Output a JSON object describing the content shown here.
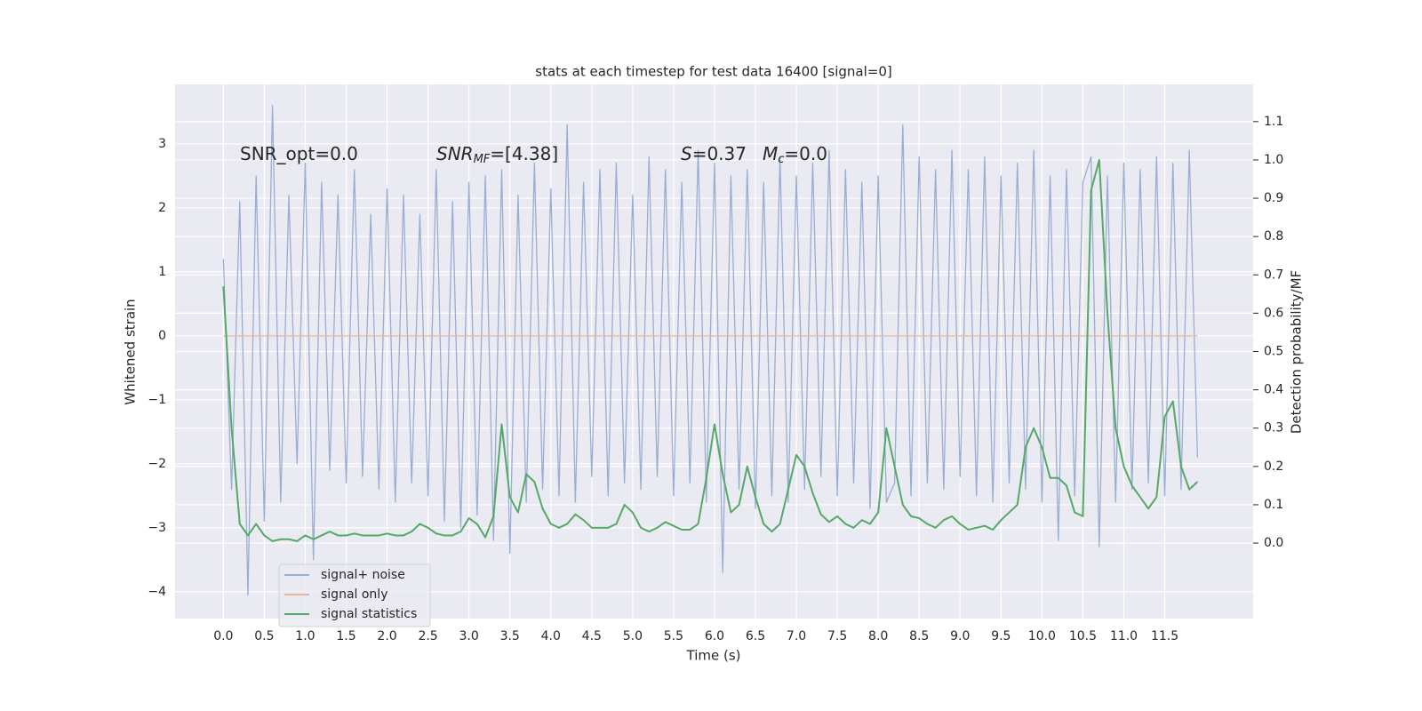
{
  "chart_data": {
    "type": "line",
    "title": "stats at each timestep for test data 16400 [signal=0]",
    "x_label": "Time (s)",
    "y_label": "Whitened strain",
    "y2_label": "Detection probability/MF",
    "annotations": [
      {
        "text": "SNR_opt=0.0"
      },
      {
        "symbol": "SNR",
        "subscript": "MF",
        "text": "=[4.38]"
      },
      {
        "symbol": "S",
        "text": "=0.37"
      },
      {
        "symbol": "M",
        "subscript": "c",
        "text": "=0.0"
      }
    ],
    "xlim": [
      -0.59,
      12.58
    ],
    "ylim": [
      -4.42,
      3.93
    ],
    "y2lim": [
      -0.197,
      1.197
    ],
    "xticks": [
      {
        "value": 0,
        "label": "0.0"
      },
      {
        "value": 0.5,
        "label": "0.5"
      },
      {
        "value": 1,
        "label": "1.0"
      },
      {
        "value": 1.5,
        "label": "1.5"
      },
      {
        "value": 2,
        "label": "2.0"
      },
      {
        "value": 2.5,
        "label": "2.5"
      },
      {
        "value": 3,
        "label": "3.0"
      },
      {
        "value": 3.5,
        "label": "3.5"
      },
      {
        "value": 4,
        "label": "4.0"
      },
      {
        "value": 4.5,
        "label": "4.5"
      },
      {
        "value": 5,
        "label": "5.0"
      },
      {
        "value": 5.5,
        "label": "5.5"
      },
      {
        "value": 6,
        "label": "6.0"
      },
      {
        "value": 6.5,
        "label": "6.5"
      },
      {
        "value": 7,
        "label": "7.0"
      },
      {
        "value": 7.5,
        "label": "7.5"
      },
      {
        "value": 8,
        "label": "8.0"
      },
      {
        "value": 8.5,
        "label": "8.5"
      },
      {
        "value": 9,
        "label": "9.0"
      },
      {
        "value": 9.5,
        "label": "9.5"
      },
      {
        "value": 10,
        "label": "10.0"
      },
      {
        "value": 10.5,
        "label": "10.5"
      },
      {
        "value": 11,
        "label": "11.0"
      },
      {
        "value": 11.5,
        "label": "11.5"
      }
    ],
    "yticks": [
      {
        "value": -4,
        "label": "−4"
      },
      {
        "value": -3,
        "label": "−3"
      },
      {
        "value": -2,
        "label": "−2"
      },
      {
        "value": -1,
        "label": "−1"
      },
      0,
      1,
      2,
      3
    ],
    "y2ticks": [
      {
        "value": 0,
        "label": "0.0"
      },
      {
        "value": 0.1,
        "label": "0.1"
      },
      {
        "value": 0.2,
        "label": "0.2"
      },
      {
        "value": 0.3,
        "label": "0.3"
      },
      {
        "value": 0.4,
        "label": "0.4"
      },
      {
        "value": 0.5,
        "label": "0.5"
      },
      {
        "value": 0.6,
        "label": "0.6"
      },
      {
        "value": 0.7,
        "label": "0.7"
      },
      {
        "value": 0.8,
        "label": "0.8"
      },
      {
        "value": 0.9,
        "label": "0.9"
      },
      {
        "value": 1,
        "label": "1.0"
      },
      {
        "value": 1.1,
        "label": "1.1"
      }
    ],
    "grid": true,
    "legend": "lower left",
    "x": [
      0,
      0.1,
      0.2,
      0.3,
      0.4,
      0.5,
      0.6,
      0.7,
      0.8,
      0.9,
      1,
      1.1,
      1.2,
      1.3,
      1.4,
      1.5,
      1.6,
      1.7,
      1.8,
      1.9,
      2,
      2.1,
      2.2,
      2.3,
      2.4,
      2.5,
      2.6,
      2.7,
      2.8,
      2.9,
      3,
      3.1,
      3.2,
      3.3,
      3.4,
      3.5,
      3.6,
      3.7,
      3.8,
      3.9,
      4,
      4.1,
      4.2,
      4.3,
      4.4,
      4.5,
      4.6,
      4.7,
      4.8,
      4.9,
      5,
      5.1,
      5.2,
      5.3,
      5.4,
      5.5,
      5.6,
      5.7,
      5.8,
      5.9,
      6,
      6.1,
      6.2,
      6.3,
      6.4,
      6.5,
      6.6,
      6.7,
      6.8,
      6.9,
      7,
      7.1,
      7.2,
      7.3,
      7.4,
      7.5,
      7.6,
      7.7,
      7.8,
      7.9,
      8,
      8.1,
      8.2,
      8.3,
      8.4,
      8.5,
      8.6,
      8.7,
      8.8,
      8.9,
      9,
      9.1,
      9.2,
      9.3,
      9.4,
      9.5,
      9.6,
      9.7,
      9.8,
      9.9,
      10,
      10.1,
      10.2,
      10.3,
      10.4,
      10.5,
      10.6,
      10.7,
      10.8,
      10.9,
      11,
      11.1,
      11.2,
      11.3,
      11.4,
      11.5,
      11.6,
      11.7,
      11.8,
      11.9
    ],
    "series": [
      {
        "name": "signal+ noise",
        "color": "#9aadd3",
        "axis": "y",
        "values": [
          1.2,
          -2.4,
          2.1,
          -4.05,
          2.5,
          -2.9,
          3.6,
          -2.6,
          2.2,
          -2.0,
          2.7,
          -3.5,
          2.4,
          -2.1,
          2.2,
          -2.3,
          2.6,
          -2.2,
          1.9,
          -2.4,
          2.3,
          -2.6,
          2.2,
          -2.3,
          1.9,
          -2.5,
          2.6,
          -2.9,
          2.1,
          -3.0,
          2.4,
          -2.8,
          2.5,
          -3.2,
          2.6,
          -3.4,
          2.2,
          -2.6,
          2.7,
          -2.4,
          2.3,
          -2.5,
          3.3,
          -2.6,
          2.4,
          -2.2,
          2.6,
          -2.5,
          2.7,
          -2.3,
          2.2,
          -2.4,
          2.8,
          -2.2,
          2.6,
          -2.5,
          2.4,
          -2.3,
          2.9,
          -2.6,
          2.7,
          -3.7,
          2.5,
          -2.4,
          2.6,
          -2.7,
          2.4,
          -2.5,
          2.8,
          -2.6,
          2.5,
          -2.4,
          2.7,
          -2.2,
          2.9,
          -2.5,
          2.6,
          -2.3,
          2.4,
          -2.7,
          2.5,
          -2.6,
          -2.3,
          3.3,
          -2.5,
          2.8,
          -2.3,
          2.6,
          -2.4,
          2.9,
          -2.2,
          2.6,
          -2.5,
          2.8,
          -2.6,
          2.5,
          -2.3,
          2.7,
          -2.4,
          2.9,
          -2.6,
          2.5,
          -3.2,
          2.6,
          -2.5,
          2.4,
          2.8,
          -3.3,
          2.5,
          -2.6,
          2.7,
          -2.4,
          2.6,
          -2.3,
          2.8,
          -2.5,
          2.7,
          -2.4,
          2.9,
          -1.9
        ]
      },
      {
        "name": "signal only",
        "color": "#e8b79a",
        "axis": "y",
        "values": [
          0,
          0,
          0,
          0,
          0,
          0,
          0,
          0,
          0,
          0,
          0,
          0,
          0,
          0,
          0,
          0,
          0,
          0,
          0,
          0,
          0,
          0,
          0,
          0,
          0,
          0,
          0,
          0,
          0,
          0,
          0,
          0,
          0,
          0,
          0,
          0,
          0,
          0,
          0,
          0,
          0,
          0,
          0,
          0,
          0,
          0,
          0,
          0,
          0,
          0,
          0,
          0,
          0,
          0,
          0,
          0,
          0,
          0,
          0,
          0,
          0,
          0,
          0,
          0,
          0,
          0,
          0,
          0,
          0,
          0,
          0,
          0,
          0,
          0,
          0,
          0,
          0,
          0,
          0,
          0,
          0,
          0,
          0,
          0,
          0,
          0,
          0,
          0,
          0,
          0,
          0,
          0,
          0,
          0,
          0,
          0,
          0,
          0,
          0,
          0,
          0,
          0,
          0,
          0,
          0,
          0,
          0,
          0,
          0,
          0,
          0,
          0,
          0,
          0,
          0,
          0,
          0,
          0,
          0,
          0
        ]
      },
      {
        "name": "signal statistics",
        "color": "#55a868",
        "axis": "y2",
        "values": [
          0.67,
          0.3,
          0.05,
          0.02,
          0.05,
          0.02,
          0.005,
          0.01,
          0.01,
          0.005,
          0.02,
          0.01,
          0.02,
          0.03,
          0.02,
          0.02,
          0.025,
          0.02,
          0.02,
          0.02,
          0.025,
          0.02,
          0.02,
          0.03,
          0.05,
          0.04,
          0.025,
          0.02,
          0.02,
          0.03,
          0.065,
          0.05,
          0.015,
          0.07,
          0.31,
          0.12,
          0.08,
          0.18,
          0.16,
          0.09,
          0.05,
          0.04,
          0.05,
          0.075,
          0.06,
          0.04,
          0.04,
          0.04,
          0.05,
          0.1,
          0.08,
          0.04,
          0.03,
          0.04,
          0.055,
          0.045,
          0.035,
          0.035,
          0.05,
          0.17,
          0.31,
          0.18,
          0.08,
          0.1,
          0.2,
          0.12,
          0.05,
          0.03,
          0.05,
          0.14,
          0.23,
          0.2,
          0.13,
          0.075,
          0.055,
          0.07,
          0.05,
          0.04,
          0.06,
          0.05,
          0.08,
          0.3,
          0.2,
          0.1,
          0.07,
          0.065,
          0.05,
          0.04,
          0.06,
          0.07,
          0.05,
          0.035,
          0.04,
          0.045,
          0.035,
          0.06,
          0.08,
          0.1,
          0.25,
          0.3,
          0.25,
          0.17,
          0.17,
          0.15,
          0.08,
          0.07,
          0.92,
          1.0,
          0.6,
          0.3,
          0.2,
          0.15,
          0.12,
          0.09,
          0.12,
          0.33,
          0.37,
          0.2,
          0.14,
          0.16
        ]
      }
    ]
  }
}
